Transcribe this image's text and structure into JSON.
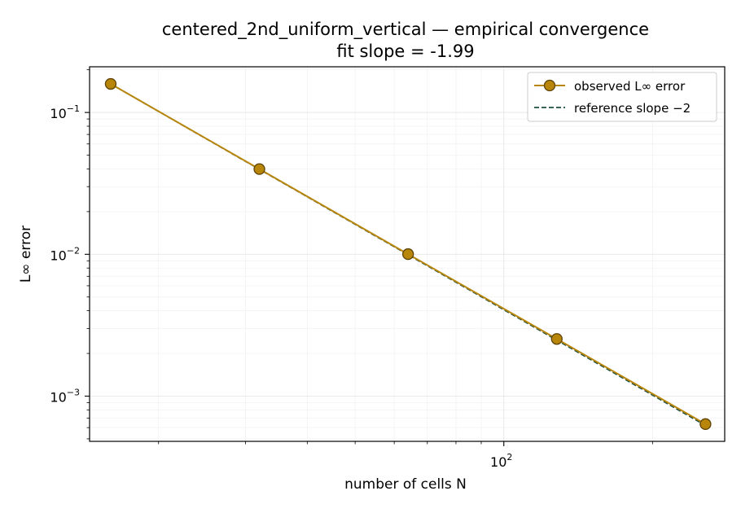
{
  "chart_data": {
    "type": "line",
    "title": "centered_2nd_uniform_vertical — empirical convergence",
    "subtitle": "fit slope = -1.99",
    "xlabel": "number of cells N",
    "ylabel": "L∞ error",
    "xscale": "log",
    "yscale": "log",
    "xlim": [
      14.5,
      280
    ],
    "ylim": [
      0.00048,
      0.21
    ],
    "x_ticks": [
      {
        "value": 100,
        "base": "10",
        "exp": "2"
      }
    ],
    "y_ticks": [
      {
        "value": 0.1,
        "base": "10",
        "exp": "−1"
      },
      {
        "value": 0.01,
        "base": "10",
        "exp": "−2"
      },
      {
        "value": 0.001,
        "base": "10",
        "exp": "−3"
      }
    ],
    "grid": true,
    "legend_position": "top-right",
    "series": [
      {
        "name": "observed L∞ error",
        "style": "line-marker",
        "color": "#b8860b",
        "marker_face": "#b8860b",
        "marker_edge": "#5c4305",
        "x": [
          16,
          32,
          64,
          128,
          256
        ],
        "y": [
          0.159,
          0.0399,
          0.01003,
          0.00253,
          0.000635
        ]
      },
      {
        "name": "reference slope −2",
        "style": "dashed",
        "color": "#1f4e3d",
        "x": [
          16,
          256
        ],
        "y": [
          0.159,
          0.000621
        ]
      }
    ]
  }
}
